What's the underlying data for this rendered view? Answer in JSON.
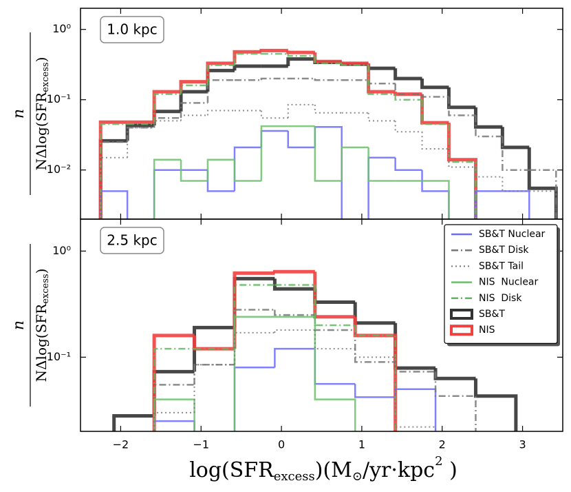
{
  "chart_data": [
    {
      "type": "histogram",
      "annotation": "1.0 kpc",
      "log_y": true,
      "legend": false,
      "ylabel": {
        "numerator": "n",
        "denominator": [
          "NΔlog(SFR",
          "excess",
          ")"
        ]
      },
      "bins": [
        -2.25,
        -1.917,
        -1.583,
        -1.25,
        -0.917,
        -0.583,
        -0.25,
        0.083,
        0.417,
        0.75,
        1.083,
        1.417,
        1.75,
        2.083,
        2.417,
        2.75,
        3.083,
        3.417
      ],
      "xlim": [
        -2.5,
        3.5
      ],
      "ylim": [
        0.002,
        2
      ],
      "yticks": [
        {
          "value": 1,
          "label": "10⁰"
        },
        {
          "value": 0.1,
          "label": "10⁻¹"
        },
        {
          "value": 0.01,
          "label": "10⁻²"
        }
      ],
      "series": [
        {
          "name": "SB&T Nuclear",
          "color": "#6b6bff",
          "linestyle": "solid",
          "linewidth": 2.5,
          "values": [
            0.005,
            null,
            0.01,
            0.01,
            0.005,
            0.021,
            0.036,
            0.021,
            0.041,
            null,
            0.015,
            0.01,
            0.005,
            null,
            0.005,
            0.005,
            null
          ]
        },
        {
          "name": "SB&T Disk",
          "color": "#777777",
          "linestyle": "dashdot",
          "linewidth": 2.5,
          "values": [
            0.025,
            0.04,
            0.055,
            0.09,
            0.19,
            0.19,
            0.2,
            0.2,
            0.19,
            0.19,
            0.17,
            0.12,
            0.11,
            0.06,
            0.03,
            0.01,
            0.01
          ]
        },
        {
          "name": "SB&T Tail",
          "color": "#777777",
          "linestyle": "dotted",
          "linewidth": 2,
          "values": [
            0.015,
            0.04,
            0.05,
            0.06,
            0.07,
            0.07,
            0.055,
            0.085,
            0.065,
            0.065,
            0.05,
            0.035,
            0.02,
            0.011,
            0.008,
            0.005,
            0.005
          ]
        },
        {
          "name": "NIS  Nuclear",
          "color": "#6cbf6c",
          "linestyle": "solid",
          "linewidth": 2.5,
          "values": [
            null,
            null,
            0.014,
            0.007,
            0.014,
            0.007,
            0.042,
            0.042,
            0.007,
            0.021,
            0.007,
            0.007,
            0.007,
            null,
            null,
            null,
            null
          ]
        },
        {
          "name": "NIS  Disk",
          "color": "#5fb85f",
          "linestyle": "dashdot",
          "linewidth": 2.5,
          "values": [
            0.045,
            0.045,
            0.12,
            0.16,
            0.31,
            0.45,
            0.45,
            0.42,
            0.33,
            0.31,
            0.12,
            0.1,
            0.045,
            0.013,
            null,
            null,
            null
          ]
        },
        {
          "name": "SB&T",
          "color": "#333333",
          "linestyle": "solid",
          "linewidth": 5,
          "values": [
            0.026,
            0.043,
            0.068,
            0.13,
            0.26,
            0.3,
            0.3,
            0.38,
            0.34,
            0.32,
            0.28,
            0.2,
            0.15,
            0.078,
            0.041,
            0.021,
            0.0055
          ]
        },
        {
          "name": "NIS",
          "color": "#f04040",
          "linestyle": "solid",
          "linewidth": 5,
          "values": [
            0.048,
            0.048,
            0.13,
            0.18,
            0.33,
            0.48,
            0.5,
            0.47,
            0.35,
            0.33,
            0.13,
            0.12,
            0.047,
            0.014,
            null,
            null,
            null
          ]
        }
      ]
    },
    {
      "type": "histogram",
      "annotation": "2.5 kpc",
      "log_y": true,
      "legend": "upper right",
      "ylabel": {
        "numerator": "n",
        "denominator": [
          "NΔlog(SFR",
          "excess",
          ")"
        ]
      },
      "xlabel": [
        "log(SFR",
        "excess",
        ")(M",
        "⊙",
        "/yr·kpc",
        "2",
        " )"
      ],
      "bins": [
        -2.083,
        -1.583,
        -1.083,
        -0.583,
        -0.083,
        0.417,
        0.917,
        1.417,
        1.917,
        2.417,
        2.917
      ],
      "xlim": [
        -2.5,
        3.5
      ],
      "ylim": [
        0.02,
        2
      ],
      "xticks": [
        {
          "value": -2,
          "label": "−2"
        },
        {
          "value": -1,
          "label": "−1"
        },
        0,
        1,
        2,
        3
      ],
      "yticks": [
        {
          "value": 1,
          "label": "10⁰"
        },
        {
          "value": 0.1,
          "label": "10⁻¹"
        }
      ],
      "series": [
        {
          "name": "SB&T Nuclear",
          "color": "#6b6bff",
          "linestyle": "solid",
          "linewidth": 2.5,
          "values": [
            null,
            0.025,
            null,
            0.08,
            0.12,
            0.056,
            0.042,
            0.05,
            null,
            null
          ]
        },
        {
          "name": "SB&T Disk",
          "color": "#777777",
          "linestyle": "dashdot",
          "linewidth": 2.5,
          "values": [
            null,
            0.055,
            0.085,
            0.28,
            0.25,
            0.18,
            0.09,
            0.073,
            0.043,
            null
          ]
        },
        {
          "name": "SB&T Tail",
          "color": "#777777",
          "linestyle": "dotted",
          "linewidth": 2,
          "values": [
            null,
            0.03,
            0.085,
            0.17,
            0.18,
            0.12,
            0.1,
            0.022,
            null,
            null
          ]
        },
        {
          "name": "NIS  Nuclear",
          "color": "#6cbf6c",
          "linestyle": "solid",
          "linewidth": 2.5,
          "values": [
            null,
            0.04,
            null,
            0.24,
            0.24,
            0.04,
            null,
            null,
            null,
            null
          ]
        },
        {
          "name": "NIS  Disk",
          "color": "#5fb85f",
          "linestyle": "dashdot",
          "linewidth": 2.5,
          "values": [
            null,
            0.12,
            0.12,
            0.48,
            0.48,
            0.2,
            0.16,
            null,
            null,
            null
          ]
        },
        {
          "name": "SB&T",
          "color": "#333333",
          "linestyle": "solid",
          "linewidth": 5,
          "values": [
            0.028,
            0.073,
            0.19,
            0.55,
            0.44,
            0.33,
            0.21,
            0.079,
            0.063,
            0.043
          ]
        },
        {
          "name": "NIS",
          "color": "#f04040",
          "linestyle": "solid",
          "linewidth": 5,
          "values": [
            null,
            0.16,
            0.12,
            0.62,
            0.64,
            0.24,
            0.16,
            null,
            null,
            null
          ]
        }
      ]
    }
  ]
}
